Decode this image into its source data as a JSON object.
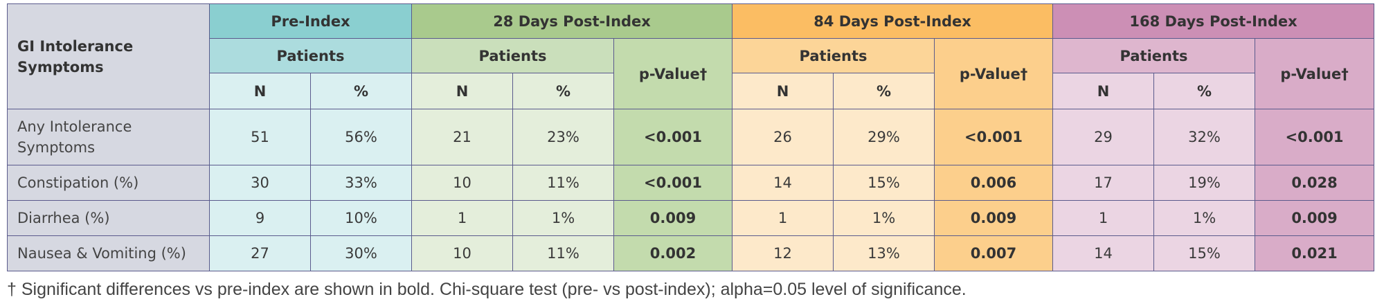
{
  "table": {
    "corner_label": "GI Intolerance Symptoms",
    "groups": [
      "Pre-Index",
      "28 Days Post-Index",
      "84 Days Post-Index",
      "168 Days Post-Index"
    ],
    "patients_label": "Patients",
    "pvalue_label": "p-Value†",
    "n_label": "N",
    "pct_label": "%",
    "rows": [
      {
        "label": "Any Intolerance Symptoms",
        "pre_n": "51",
        "pre_pct": "56%",
        "d28_n": "21",
        "d28_pct": "23%",
        "d28_p": "<0.001",
        "d84_n": "26",
        "d84_pct": "29%",
        "d84_p": "<0.001",
        "d168_n": "29",
        "d168_pct": "32%",
        "d168_p": "<0.001"
      },
      {
        "label": "Constipation (%)",
        "pre_n": "30",
        "pre_pct": "33%",
        "d28_n": "10",
        "d28_pct": "11%",
        "d28_p": "<0.001",
        "d84_n": "14",
        "d84_pct": "15%",
        "d84_p": "0.006",
        "d168_n": "17",
        "d168_pct": "19%",
        "d168_p": "0.028"
      },
      {
        "label": "Diarrhea (%)",
        "pre_n": "9",
        "pre_pct": "10%",
        "d28_n": "1",
        "d28_pct": "1%",
        "d28_p": "0.009",
        "d84_n": "1",
        "d84_pct": "1%",
        "d84_p": "0.009",
        "d168_n": "1",
        "d168_pct": "1%",
        "d168_p": "0.009"
      },
      {
        "label": "Nausea & Vomiting (%)",
        "pre_n": "27",
        "pre_pct": "30%",
        "d28_n": "10",
        "d28_pct": "11%",
        "d28_p": "0.002",
        "d84_n": "12",
        "d84_pct": "13%",
        "d84_p": "0.007",
        "d168_n": "14",
        "d168_pct": "15%",
        "d168_p": "0.021"
      }
    ]
  },
  "footnote": "† Significant differences vs pre-index are shown in bold. Chi-square test (pre- vs post-index); alpha=0.05 level of significance.",
  "colors": {
    "pre_index": "#8acfd0",
    "d28": "#a9ca8d",
    "d84": "#fbbd63",
    "d168": "#cc8fb5",
    "label_column": "#d6d8e1",
    "border": "#5a5a8c"
  },
  "chart_data": {
    "type": "table",
    "title": "",
    "columns": [
      "GI Intolerance Symptoms",
      "Pre-Index N",
      "Pre-Index %",
      "28 Days N",
      "28 Days %",
      "28 Days p-Value",
      "84 Days N",
      "84 Days %",
      "84 Days p-Value",
      "168 Days N",
      "168 Days %",
      "168 Days p-Value"
    ],
    "rows": [
      [
        "Any Intolerance Symptoms",
        51,
        56,
        21,
        23,
        "<0.001",
        26,
        29,
        "<0.001",
        29,
        32,
        "<0.001"
      ],
      [
        "Constipation (%)",
        30,
        33,
        10,
        11,
        "<0.001",
        14,
        15,
        0.006,
        17,
        19,
        0.028
      ],
      [
        "Diarrhea (%)",
        9,
        10,
        1,
        1,
        0.009,
        1,
        1,
        0.009,
        1,
        1,
        0.009
      ],
      [
        "Nausea & Vomiting (%)",
        27,
        30,
        10,
        11,
        0.002,
        12,
        13,
        0.007,
        14,
        15,
        0.021
      ]
    ]
  }
}
